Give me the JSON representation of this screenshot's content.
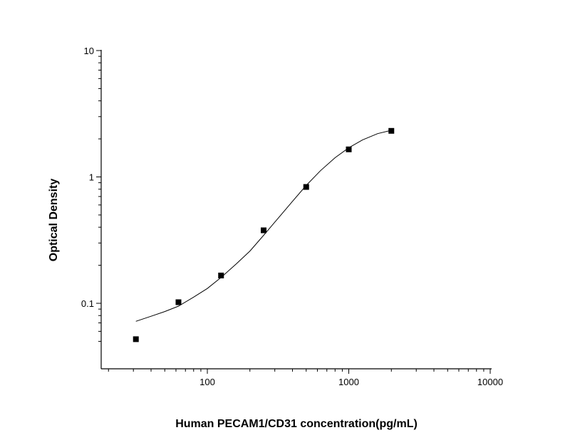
{
  "chart_data": {
    "type": "scatter",
    "title": "",
    "xlabel": "Human PECAM1/CD31 concentration(pg/mL)",
    "ylabel": "Optical Density",
    "xscale": "log",
    "yscale": "log",
    "xlim": [
      20,
      10000
    ],
    "ylim": [
      0.05,
      10
    ],
    "xticks": [
      100,
      1000,
      10000
    ],
    "xtick_labels": [
      "100",
      "1000",
      "10000"
    ],
    "yticks": [
      0.1,
      1,
      10
    ],
    "ytick_labels": [
      "0.1",
      "1",
      "10"
    ],
    "grid": false,
    "legend": "none",
    "marker_color": "#000000",
    "line_color": "#000000",
    "series": [
      {
        "kind": "points",
        "x": [
          31.25,
          62.5,
          125,
          250,
          500,
          1000,
          2000
        ],
        "y": [
          0.052,
          0.102,
          0.166,
          0.378,
          0.833,
          1.652,
          2.315
        ]
      },
      {
        "kind": "fitted-curve",
        "x": [
          31.25,
          40,
          50,
          62.5,
          80,
          100,
          125,
          160,
          200,
          250,
          320,
          400,
          500,
          630,
          800,
          1000,
          1250,
          1600,
          2000
        ],
        "y": [
          0.072,
          0.079,
          0.086,
          0.095,
          0.112,
          0.131,
          0.16,
          0.205,
          0.259,
          0.345,
          0.478,
          0.641,
          0.856,
          1.12,
          1.42,
          1.7,
          1.96,
          2.2,
          2.34
        ]
      }
    ]
  }
}
